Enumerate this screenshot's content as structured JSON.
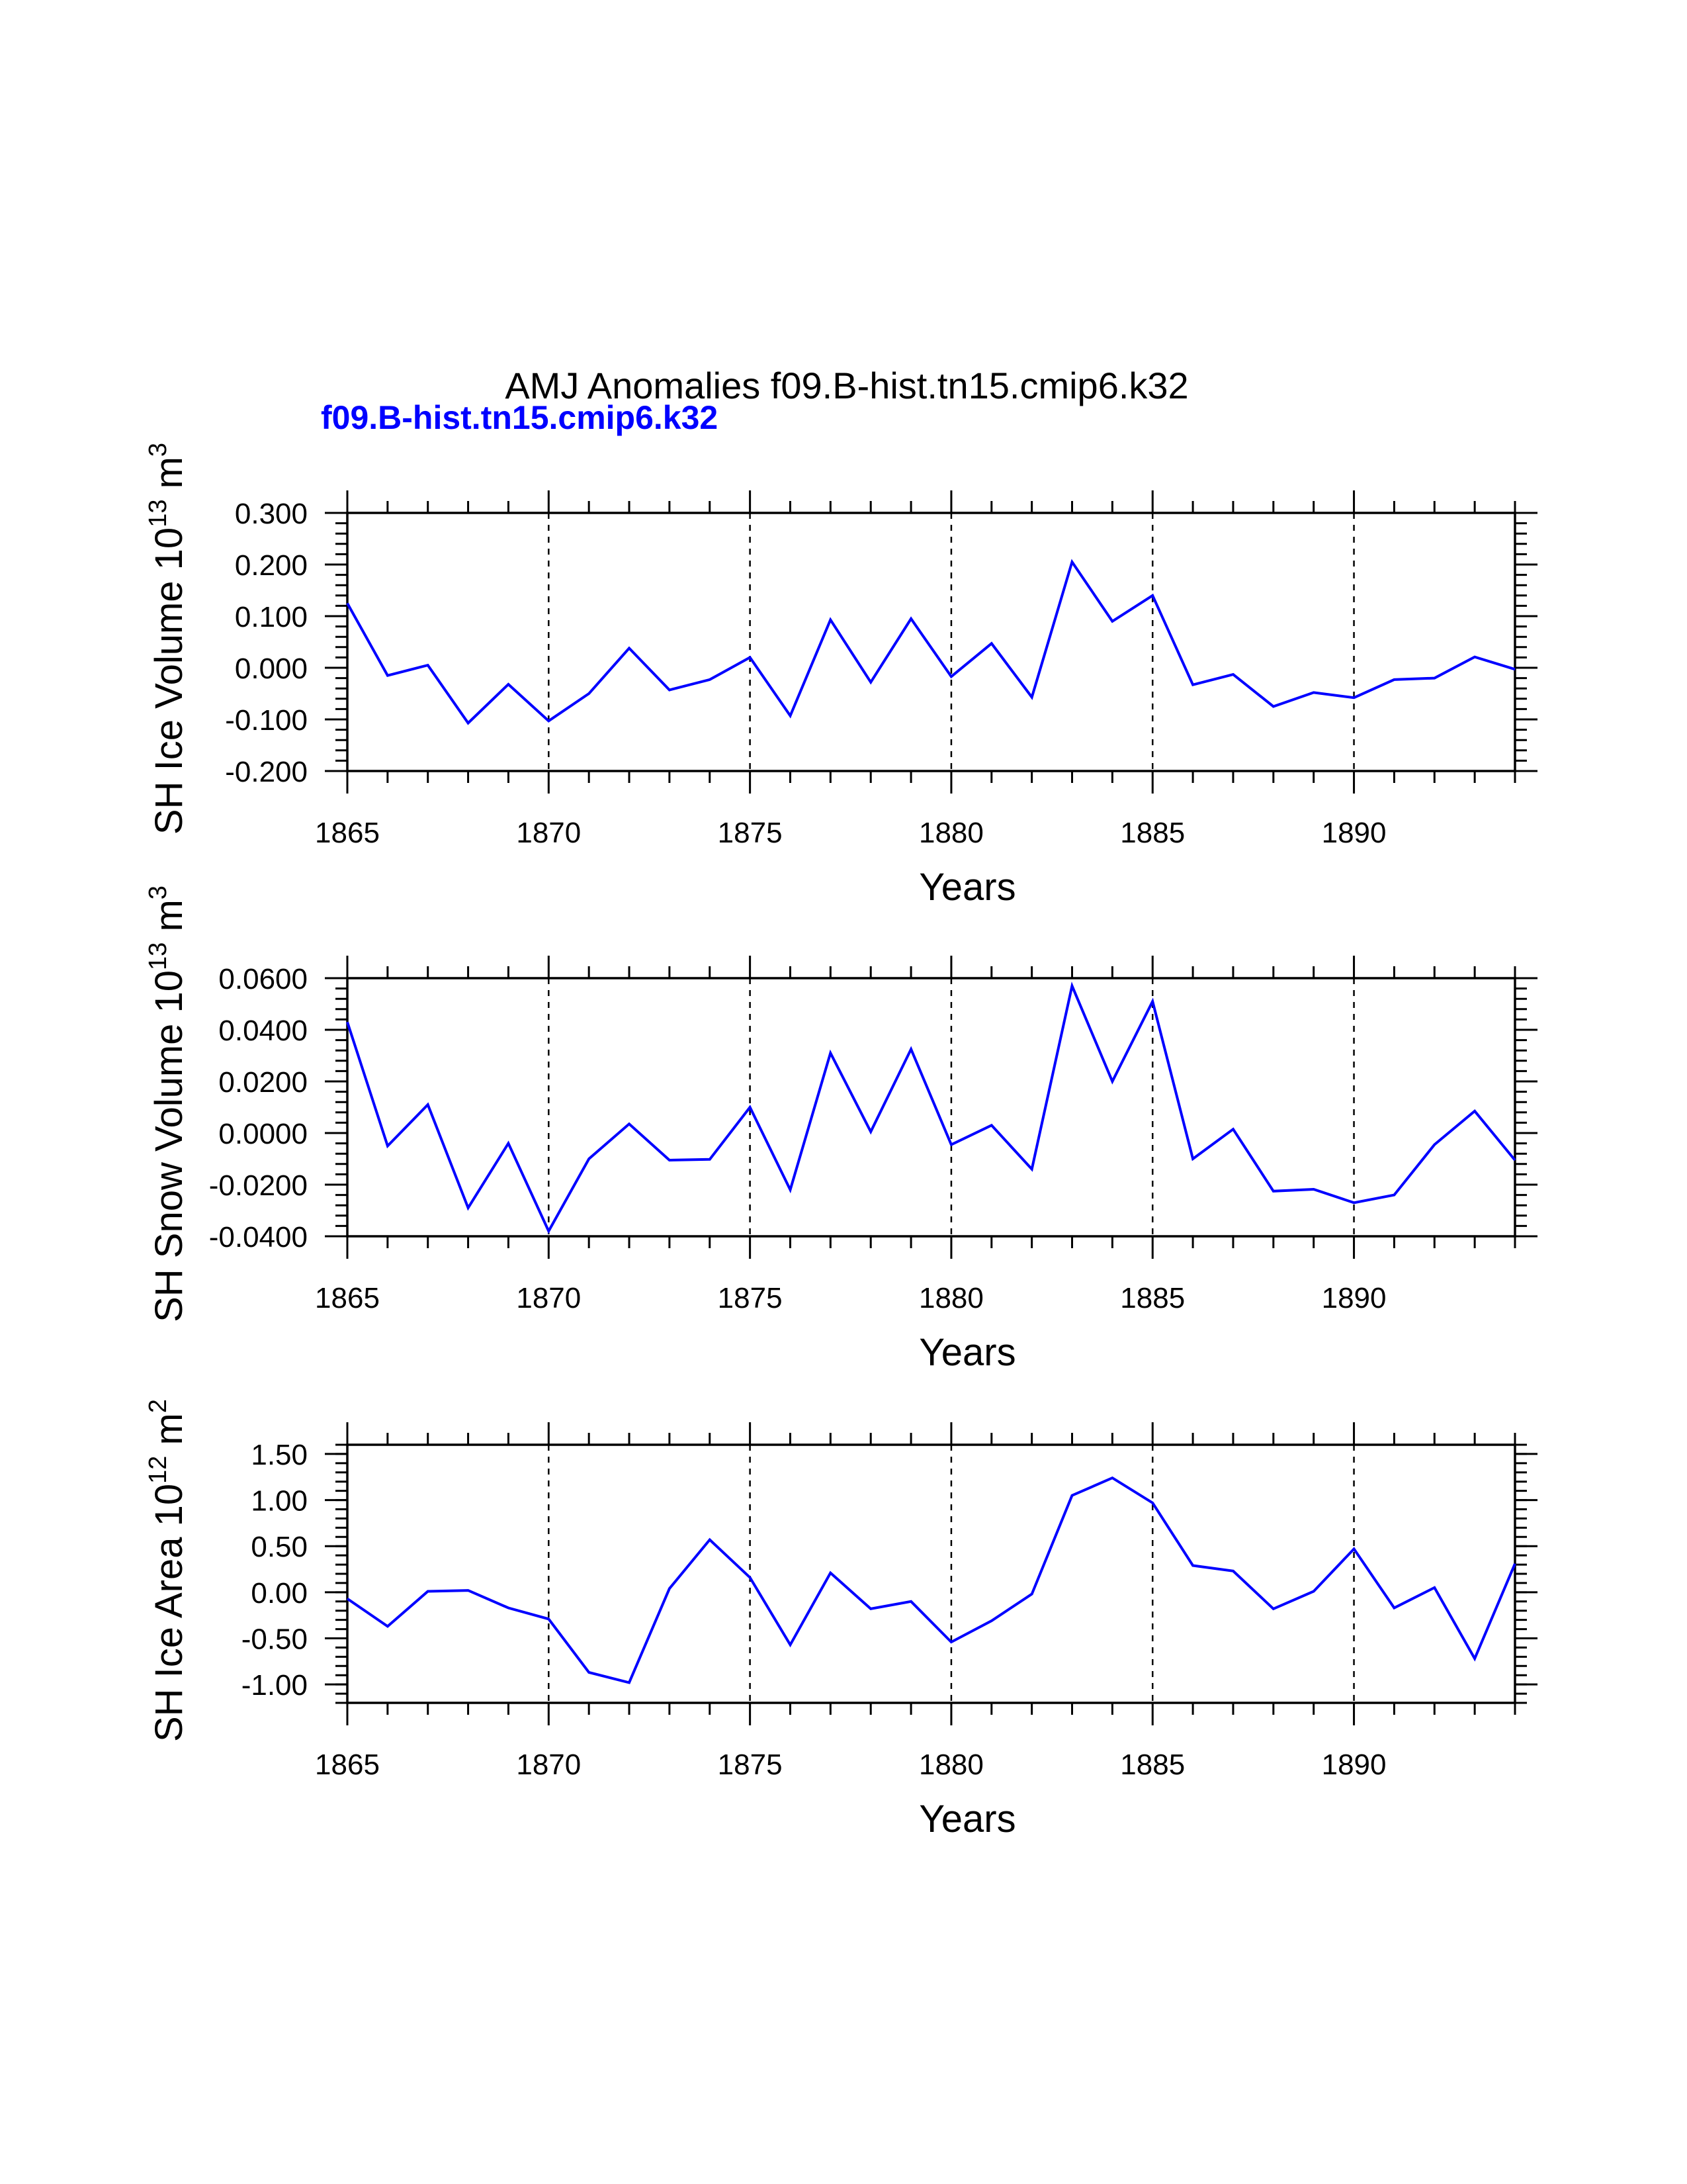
{
  "title": "AMJ Anomalies f09.B-hist.tn15.cmip6.k32",
  "subtitle": "f09.B-hist.tn15.cmip6.k32",
  "colors": {
    "series": "#0000ff",
    "axes": "#000000",
    "subtitle": "#0000ff"
  },
  "chart_data": [
    {
      "type": "line",
      "ylabel": "SH Ice Volume 10¹³ m³",
      "ylabel_parts": {
        "base": "SH Ice Volume 10",
        "exp": "13",
        "unit": " m",
        "unit_exp": "3"
      },
      "xlabel": "Years",
      "xlim": [
        1865,
        1894
      ],
      "ylim": [
        -0.2,
        0.3
      ],
      "grid": "vertical dashed at major x ticks",
      "x_ticks": [
        1865,
        1870,
        1875,
        1880,
        1885,
        1890
      ],
      "x_tick_labels": [
        "1865",
        "1870",
        "1875",
        "1880",
        "1885",
        "1890"
      ],
      "y_ticks": [
        -0.2,
        -0.1,
        0.0,
        0.1,
        0.2,
        0.3
      ],
      "y_tick_labels": [
        "-0.200",
        "-0.100",
        "0.000",
        "0.100",
        "0.200",
        "0.300"
      ],
      "y_minor_step": 0.02,
      "x": [
        1865,
        1866,
        1867,
        1868,
        1869,
        1870,
        1871,
        1872,
        1873,
        1874,
        1875,
        1876,
        1877,
        1878,
        1879,
        1880,
        1881,
        1882,
        1883,
        1884,
        1885,
        1886,
        1887,
        1888,
        1889,
        1890,
        1891,
        1892,
        1893,
        1894
      ],
      "series": [
        {
          "name": "f09.B-hist.tn15.cmip6.k32",
          "values": [
            0.125,
            -0.015,
            0.005,
            -0.107,
            -0.032,
            -0.103,
            -0.05,
            0.038,
            -0.043,
            -0.023,
            0.02,
            -0.093,
            0.093,
            -0.028,
            0.095,
            -0.017,
            0.047,
            -0.057,
            0.205,
            0.09,
            0.14,
            -0.033,
            -0.013,
            -0.075,
            -0.048,
            -0.058,
            -0.023,
            -0.02,
            0.021,
            -0.003
          ]
        }
      ]
    },
    {
      "type": "line",
      "ylabel": "SH Snow Volume 10¹³ m³",
      "ylabel_parts": {
        "base": "SH Snow Volume 10",
        "exp": "13",
        "unit": " m",
        "unit_exp": "3"
      },
      "xlabel": "Years",
      "xlim": [
        1865,
        1894
      ],
      "ylim": [
        -0.04,
        0.06
      ],
      "grid": "vertical dashed at major x ticks",
      "x_ticks": [
        1865,
        1870,
        1875,
        1880,
        1885,
        1890
      ],
      "x_tick_labels": [
        "1865",
        "1870",
        "1875",
        "1880",
        "1885",
        "1890"
      ],
      "y_ticks": [
        -0.04,
        -0.02,
        0.0,
        0.02,
        0.04,
        0.06
      ],
      "y_tick_labels": [
        "-0.0400",
        "-0.0200",
        "0.0000",
        "0.0200",
        "0.0400",
        "0.0600"
      ],
      "y_minor_step": 0.004,
      "x": [
        1865,
        1866,
        1867,
        1868,
        1869,
        1870,
        1871,
        1872,
        1873,
        1874,
        1875,
        1876,
        1877,
        1878,
        1879,
        1880,
        1881,
        1882,
        1883,
        1884,
        1885,
        1886,
        1887,
        1888,
        1889,
        1890,
        1891,
        1892,
        1893,
        1894
      ],
      "series": [
        {
          "name": "f09.B-hist.tn15.cmip6.k32",
          "values": [
            0.043,
            -0.005,
            0.011,
            -0.029,
            -0.004,
            -0.038,
            -0.01,
            0.0035,
            -0.0105,
            -0.0102,
            0.01,
            -0.022,
            0.031,
            0.0005,
            0.0325,
            -0.0045,
            0.003,
            -0.014,
            0.057,
            0.02,
            0.051,
            -0.01,
            0.0015,
            -0.0225,
            -0.0218,
            -0.027,
            -0.024,
            -0.0045,
            0.0085,
            -0.0105
          ]
        }
      ]
    },
    {
      "type": "line",
      "ylabel": "SH Ice Area 10¹² m²",
      "ylabel_parts": {
        "base": "SH Ice Area 10",
        "exp": "12",
        "unit": " m",
        "unit_exp": "2"
      },
      "xlabel": "Years",
      "xlim": [
        1865,
        1894
      ],
      "ylim": [
        -1.2,
        1.6
      ],
      "grid": "vertical dashed at major x ticks",
      "x_ticks": [
        1865,
        1870,
        1875,
        1880,
        1885,
        1890
      ],
      "x_tick_labels": [
        "1865",
        "1870",
        "1875",
        "1880",
        "1885",
        "1890"
      ],
      "y_ticks": [
        -1.0,
        -0.5,
        0.0,
        0.5,
        1.0,
        1.5
      ],
      "y_tick_labels": [
        "-1.00",
        "-0.50",
        "0.00",
        "0.50",
        "1.00",
        "1.50"
      ],
      "y_minor_step": 0.1,
      "x": [
        1865,
        1866,
        1867,
        1868,
        1869,
        1870,
        1871,
        1872,
        1873,
        1874,
        1875,
        1876,
        1877,
        1878,
        1879,
        1880,
        1881,
        1882,
        1883,
        1884,
        1885,
        1886,
        1887,
        1888,
        1889,
        1890,
        1891,
        1892,
        1893,
        1894
      ],
      "series": [
        {
          "name": "f09.B-hist.tn15.cmip6.k32",
          "values": [
            -0.07,
            -0.37,
            0.01,
            0.02,
            -0.17,
            -0.29,
            -0.87,
            -0.98,
            0.04,
            0.57,
            0.16,
            -0.57,
            0.21,
            -0.18,
            -0.1,
            -0.54,
            -0.31,
            -0.02,
            1.05,
            1.24,
            0.97,
            0.29,
            0.23,
            -0.18,
            0.01,
            0.47,
            -0.17,
            0.05,
            -0.72,
            0.31
          ]
        }
      ]
    }
  ]
}
